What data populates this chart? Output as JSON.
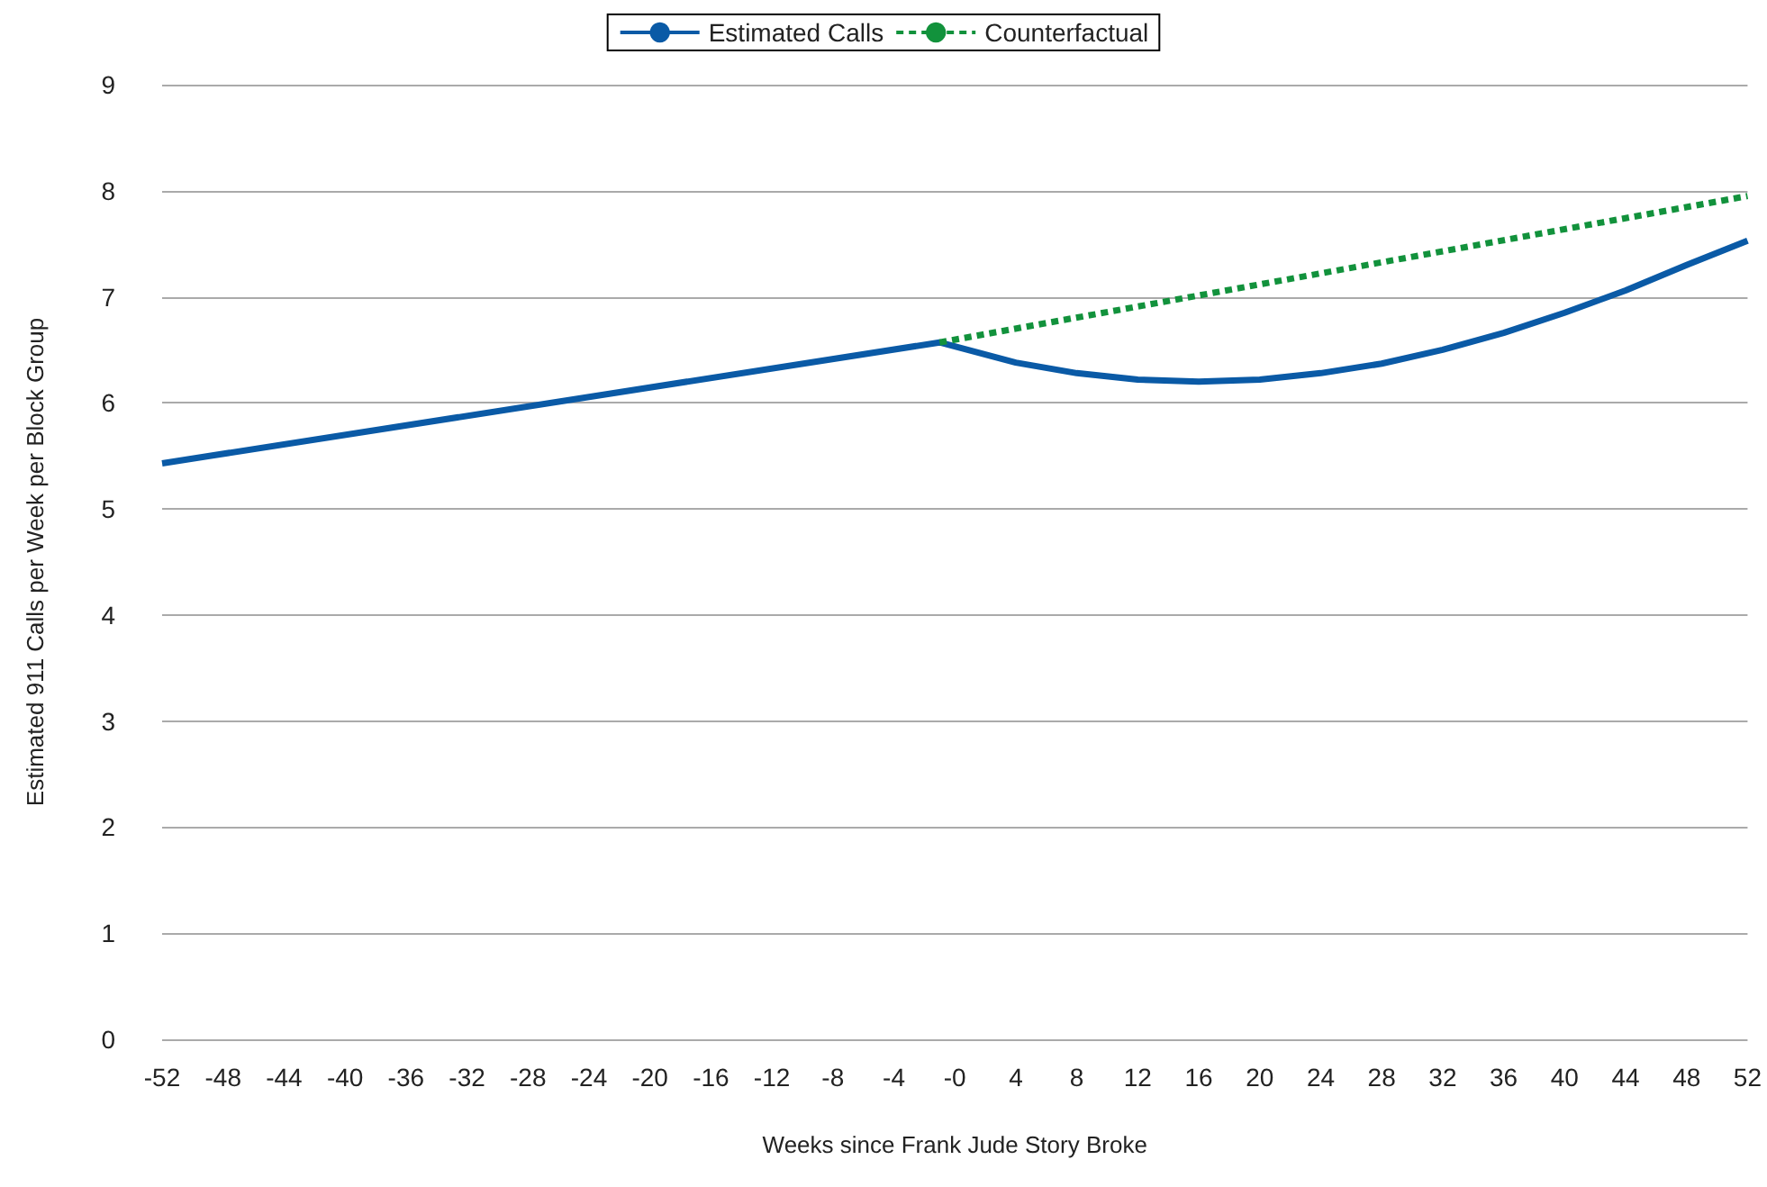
{
  "chart_data": {
    "type": "line",
    "xlabel": "Weeks since Frank Jude Story Broke",
    "ylabel": "Estimated 911 Calls per Week per Block Group",
    "xlim": [
      -52,
      52
    ],
    "xticks": [
      -52,
      -48,
      -44,
      -40,
      -36,
      -32,
      -28,
      -24,
      -20,
      -16,
      -12,
      -8,
      -4,
      {
        "value": 0,
        "label": "-0"
      },
      4,
      8,
      12,
      16,
      20,
      24,
      28,
      32,
      36,
      40,
      44,
      48,
      52
    ],
    "ylim": [
      0,
      9
    ],
    "yticks": [
      0,
      1,
      2,
      3,
      4,
      5,
      6,
      7,
      8,
      9
    ],
    "grid": "y",
    "legend": "top",
    "marker": "none",
    "series": [
      {
        "name": "Estimated Calls",
        "color": "#0a5aa6",
        "line_style": "solid",
        "x": [
          -52,
          -1,
          4,
          8,
          12,
          16,
          20,
          24,
          28,
          32,
          36,
          40,
          44,
          48,
          52
        ],
        "values": [
          5.43,
          6.57,
          6.38,
          6.28,
          6.22,
          6.2,
          6.22,
          6.28,
          6.37,
          6.5,
          6.66,
          6.85,
          7.06,
          7.3,
          7.53
        ]
      },
      {
        "name": "Counterfactual",
        "color": "#12923c",
        "line_style": "dashed",
        "x": [
          -1,
          52
        ],
        "values": [
          6.57,
          7.95
        ]
      }
    ]
  }
}
